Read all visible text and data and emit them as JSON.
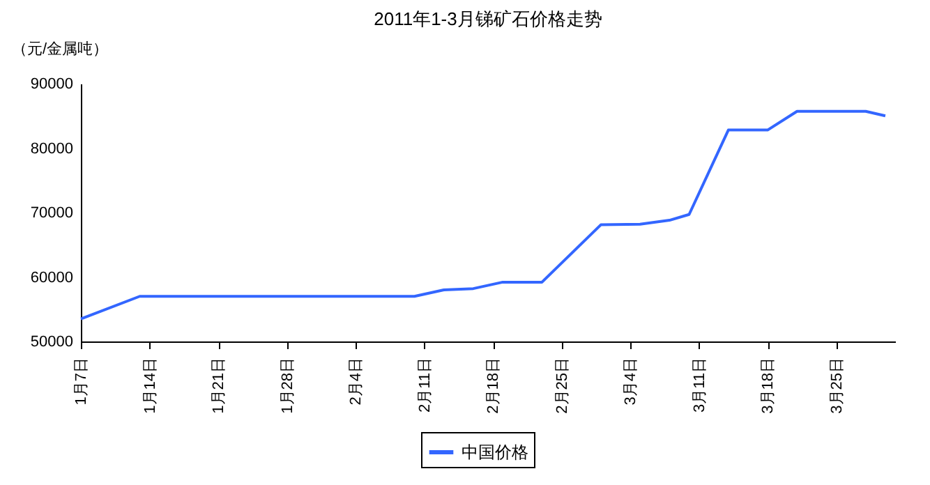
{
  "chart_data": {
    "type": "line",
    "title": "2011年1-3月锑矿石价格走势",
    "ylabel": "（元/金属吨）",
    "x": [
      "2011-01-07",
      "2011-01-13",
      "2011-02-10",
      "2011-02-13",
      "2011-02-16",
      "2011-02-19",
      "2011-02-23",
      "2011-03-01",
      "2011-03-05",
      "2011-03-08",
      "2011-03-10",
      "2011-03-14",
      "2011-03-18",
      "2011-03-21",
      "2011-03-28",
      "2011-03-30"
    ],
    "series": [
      {
        "name": "中国价格",
        "color": "#3366ff",
        "values": [
          53500,
          57000,
          57000,
          58000,
          58200,
          59200,
          59200,
          68100,
          68200,
          68800,
          69700,
          82800,
          82800,
          85700,
          85700,
          85000
        ]
      }
    ],
    "xlim": [
      "2011-01-07",
      "2011-03-31"
    ],
    "xticks": [
      {
        "value": "2011-01-07",
        "label": "1月7日"
      },
      {
        "value": "2011-01-14",
        "label": "1月14日"
      },
      {
        "value": "2011-01-21",
        "label": "1月21日"
      },
      {
        "value": "2011-01-28",
        "label": "1月28日"
      },
      {
        "value": "2011-02-04",
        "label": "2月4日"
      },
      {
        "value": "2011-02-11",
        "label": "2月11日"
      },
      {
        "value": "2011-02-18",
        "label": "2月18日"
      },
      {
        "value": "2011-02-25",
        "label": "2月25日"
      },
      {
        "value": "2011-03-04",
        "label": "3月4日"
      },
      {
        "value": "2011-03-11",
        "label": "3月11日"
      },
      {
        "value": "2011-03-18",
        "label": "3月18日"
      },
      {
        "value": "2011-03-25",
        "label": "3月25日"
      }
    ],
    "ylim": [
      50000,
      90000
    ],
    "yticks": [
      50000,
      60000,
      70000,
      80000,
      90000
    ],
    "grid": false,
    "legend": "bottom",
    "marker": "none",
    "line_style": "solid"
  }
}
